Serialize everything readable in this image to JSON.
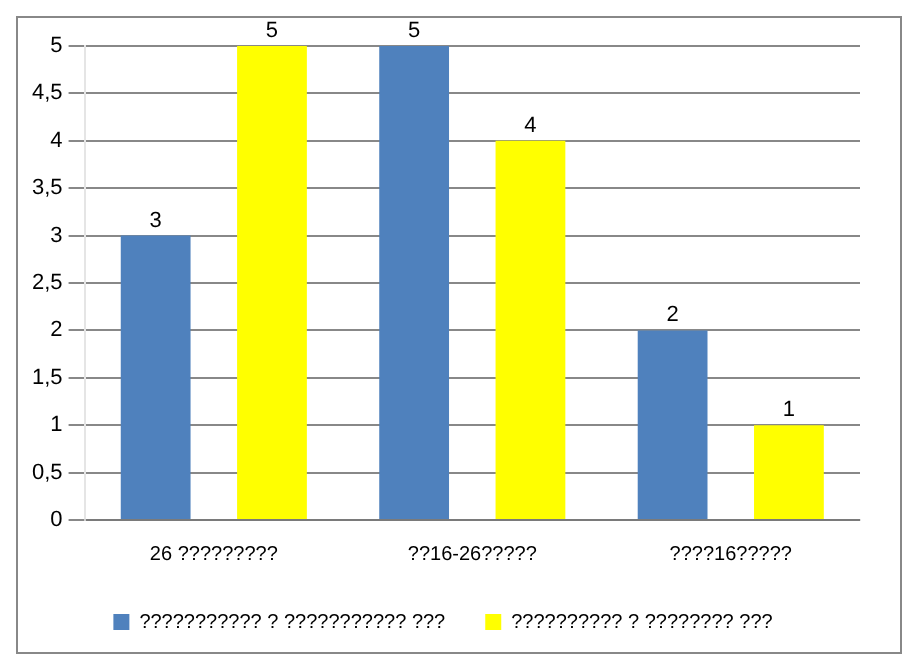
{
  "chart_data": {
    "type": "bar",
    "categories": [
      "26 ?????????",
      "??16-26?????",
      "????16?????"
    ],
    "series": [
      {
        "name": "??????????? ? ??????????? ???",
        "color": "#4f81bd",
        "values": [
          3,
          5,
          2
        ]
      },
      {
        "name": "?????????? ? ???????? ???",
        "color": "#ffff00",
        "values": [
          5,
          4,
          1
        ]
      }
    ],
    "ylim": [
      0,
      5
    ],
    "yticks": [
      0,
      {
        "value": 0.5,
        "label": "0,5"
      },
      1,
      {
        "value": 1.5,
        "label": "1,5"
      },
      2,
      {
        "value": 2.5,
        "label": "2,5"
      },
      3,
      {
        "value": 3.5,
        "label": "3,5"
      },
      4,
      {
        "value": 4.5,
        "label": "4,5"
      },
      5
    ],
    "grid": "y",
    "legend": "bottom",
    "data_labels": true
  }
}
